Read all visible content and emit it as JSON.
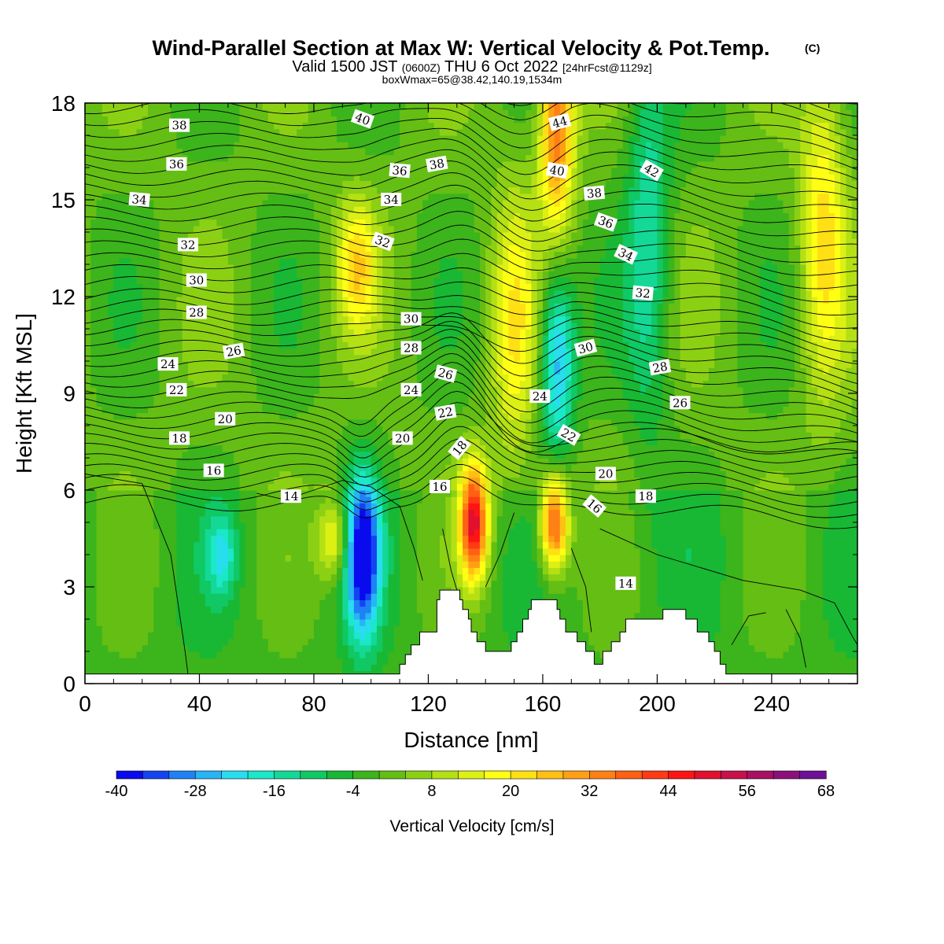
{
  "title": "Wind-Parallel Section at Max W: Vertical Velocity & Pot.Temp.",
  "copyright_mark": "(C)",
  "subtitle": {
    "part1": "Valid 1500 JST",
    "part2": "(0600Z)",
    "part3": "THU 6 Oct 2022",
    "part4": "[24hrFcst@1129z]"
  },
  "subtitle2": "boxWmax=65@38.42,140.19,1534m",
  "chart_data": {
    "type": "heatmap",
    "xlabel": "Distance [nm]",
    "ylabel": "Height [Kft MSL]",
    "xlim": [
      0,
      270
    ],
    "ylim": [
      0,
      18
    ],
    "x_ticks": [
      0,
      40,
      80,
      120,
      160,
      200,
      240
    ],
    "y_ticks": [
      0,
      3,
      6,
      9,
      12,
      15,
      18
    ],
    "grid": false,
    "colorbar": {
      "label": "Vertical Velocity [cm/s]",
      "placement": "bottom",
      "min": -40,
      "max": 68,
      "step": 4,
      "tick_labels": [
        "-40",
        "-28",
        "-16",
        "-4",
        "8",
        "20",
        "32",
        "44",
        "56",
        "68"
      ],
      "colors": [
        "#0a0aee",
        "#1444f2",
        "#1e82f5",
        "#28b4f5",
        "#28ddee",
        "#1ae8c8",
        "#14d896",
        "#10c864",
        "#18b834",
        "#3cb41c",
        "#64be14",
        "#8cd014",
        "#b4e014",
        "#dcf014",
        "#ffff14",
        "#ffe014",
        "#ffc014",
        "#ffa014",
        "#ff8014",
        "#ff6014",
        "#ff3a14",
        "#ff1414",
        "#e0102e",
        "#c8104a",
        "#a81064",
        "#8c107c",
        "#6c1096"
      ]
    },
    "vertical_velocity_cores": [
      {
        "x": 97,
        "z": 4.0,
        "w": -40
      },
      {
        "x": 87,
        "z": 4.5,
        "w": 20
      },
      {
        "x": 136,
        "z": 5.0,
        "w": 50
      },
      {
        "x": 164,
        "z": 5.0,
        "w": 44
      },
      {
        "x": 165,
        "z": 10.0,
        "w": -28
      },
      {
        "x": 197,
        "z": 14.0,
        "w": -16
      },
      {
        "x": 258,
        "z": 14.0,
        "w": 20
      },
      {
        "x": 150,
        "z": 11.0,
        "w": 16
      },
      {
        "x": 95,
        "z": 13.0,
        "w": 20
      },
      {
        "x": 165,
        "z": 17.5,
        "w": 36
      },
      {
        "x": 48,
        "z": 4.0,
        "w": -16
      }
    ],
    "contour_labels": [
      {
        "text": "38",
        "x": 33,
        "z": 17.3,
        "rot": 0
      },
      {
        "text": "40",
        "x": 97,
        "z": 17.5,
        "rot": 20
      },
      {
        "text": "44",
        "x": 166,
        "z": 17.4,
        "rot": -15
      },
      {
        "text": "36",
        "x": 32,
        "z": 16.1,
        "rot": 0
      },
      {
        "text": "36",
        "x": 110,
        "z": 15.9,
        "rot": 5
      },
      {
        "text": "38",
        "x": 123,
        "z": 16.1,
        "rot": -10
      },
      {
        "text": "40",
        "x": 165,
        "z": 15.9,
        "rot": 10
      },
      {
        "text": "42",
        "x": 198,
        "z": 15.9,
        "rot": 30
      },
      {
        "text": "34",
        "x": 19,
        "z": 15.0,
        "rot": 5
      },
      {
        "text": "34",
        "x": 107,
        "z": 15.0,
        "rot": 0
      },
      {
        "text": "38",
        "x": 178,
        "z": 15.2,
        "rot": -5
      },
      {
        "text": "36",
        "x": 182,
        "z": 14.3,
        "rot": 20
      },
      {
        "text": "32",
        "x": 36,
        "z": 13.6,
        "rot": 0
      },
      {
        "text": "32",
        "x": 104,
        "z": 13.7,
        "rot": 20
      },
      {
        "text": "34",
        "x": 189,
        "z": 13.3,
        "rot": 25
      },
      {
        "text": "30",
        "x": 39,
        "z": 12.5,
        "rot": 0
      },
      {
        "text": "32",
        "x": 195,
        "z": 12.1,
        "rot": 5
      },
      {
        "text": "28",
        "x": 39,
        "z": 11.5,
        "rot": 0
      },
      {
        "text": "30",
        "x": 114,
        "z": 11.3,
        "rot": 0
      },
      {
        "text": "28",
        "x": 114,
        "z": 10.4,
        "rot": 0
      },
      {
        "text": "30",
        "x": 175,
        "z": 10.4,
        "rot": -15
      },
      {
        "text": "26",
        "x": 52,
        "z": 10.3,
        "rot": -10
      },
      {
        "text": "26",
        "x": 126,
        "z": 9.6,
        "rot": 15
      },
      {
        "text": "28",
        "x": 201,
        "z": 9.8,
        "rot": -10
      },
      {
        "text": "24",
        "x": 29,
        "z": 9.9,
        "rot": 0
      },
      {
        "text": "24",
        "x": 114,
        "z": 9.1,
        "rot": 0
      },
      {
        "text": "24",
        "x": 159,
        "z": 8.9,
        "rot": 0
      },
      {
        "text": "22",
        "x": 32,
        "z": 9.1,
        "rot": 0
      },
      {
        "text": "22",
        "x": 126,
        "z": 8.4,
        "rot": -10
      },
      {
        "text": "26",
        "x": 208,
        "z": 8.7,
        "rot": 0
      },
      {
        "text": "20",
        "x": 49,
        "z": 8.2,
        "rot": 0
      },
      {
        "text": "20",
        "x": 111,
        "z": 7.6,
        "rot": 0
      },
      {
        "text": "22",
        "x": 169,
        "z": 7.7,
        "rot": 30
      },
      {
        "text": "18",
        "x": 33,
        "z": 7.6,
        "rot": 0
      },
      {
        "text": "18",
        "x": 131,
        "z": 7.3,
        "rot": -50
      },
      {
        "text": "16",
        "x": 45,
        "z": 6.6,
        "rot": 0
      },
      {
        "text": "20",
        "x": 182,
        "z": 6.5,
        "rot": 0
      },
      {
        "text": "16",
        "x": 124,
        "z": 6.1,
        "rot": 0
      },
      {
        "text": "18",
        "x": 196,
        "z": 5.8,
        "rot": 0
      },
      {
        "text": "14",
        "x": 72,
        "z": 5.8,
        "rot": 0
      },
      {
        "text": "16",
        "x": 178,
        "z": 5.5,
        "rot": 40
      },
      {
        "text": "14",
        "x": 189,
        "z": 3.1,
        "rot": 0
      }
    ],
    "terrain_top": [
      [
        0,
        0.3
      ],
      [
        110,
        0.3
      ],
      [
        110,
        0.6
      ],
      [
        112,
        0.6
      ],
      [
        112,
        0.9
      ],
      [
        114,
        0.9
      ],
      [
        114,
        1.2
      ],
      [
        117,
        1.2
      ],
      [
        117,
        1.6
      ],
      [
        123,
        1.6
      ],
      [
        123,
        2.6
      ],
      [
        124,
        2.6
      ],
      [
        124,
        2.9
      ],
      [
        131,
        2.9
      ],
      [
        131,
        2.6
      ],
      [
        132,
        2.6
      ],
      [
        132,
        2.3
      ],
      [
        134,
        2.3
      ],
      [
        134,
        2.0
      ],
      [
        135,
        2.0
      ],
      [
        135,
        1.6
      ],
      [
        137,
        1.6
      ],
      [
        137,
        1.3
      ],
      [
        140,
        1.3
      ],
      [
        140,
        1.0
      ],
      [
        149,
        1.0
      ],
      [
        149,
        1.3
      ],
      [
        151,
        1.3
      ],
      [
        151,
        1.6
      ],
      [
        153,
        1.6
      ],
      [
        153,
        2.0
      ],
      [
        155,
        2.0
      ],
      [
        155,
        2.3
      ],
      [
        156,
        2.3
      ],
      [
        156,
        2.6
      ],
      [
        165,
        2.6
      ],
      [
        165,
        2.3
      ],
      [
        166,
        2.3
      ],
      [
        166,
        2.0
      ],
      [
        168,
        2.0
      ],
      [
        168,
        1.6
      ],
      [
        172,
        1.6
      ],
      [
        172,
        1.3
      ],
      [
        175,
        1.3
      ],
      [
        175,
        1.0
      ],
      [
        178,
        1.0
      ],
      [
        178,
        0.6
      ],
      [
        181,
        0.6
      ],
      [
        181,
        1.0
      ],
      [
        184,
        1.0
      ],
      [
        184,
        1.3
      ],
      [
        187,
        1.3
      ],
      [
        187,
        1.6
      ],
      [
        189,
        1.6
      ],
      [
        189,
        2.0
      ],
      [
        202,
        2.0
      ],
      [
        202,
        2.3
      ],
      [
        210,
        2.3
      ],
      [
        210,
        2.0
      ],
      [
        214,
        2.0
      ],
      [
        214,
        1.6
      ],
      [
        218,
        1.6
      ],
      [
        218,
        1.3
      ],
      [
        220,
        1.3
      ],
      [
        220,
        1.0
      ],
      [
        222,
        1.0
      ],
      [
        222,
        0.6
      ],
      [
        224,
        0.6
      ],
      [
        224,
        0.3
      ],
      [
        270,
        0.3
      ]
    ]
  }
}
